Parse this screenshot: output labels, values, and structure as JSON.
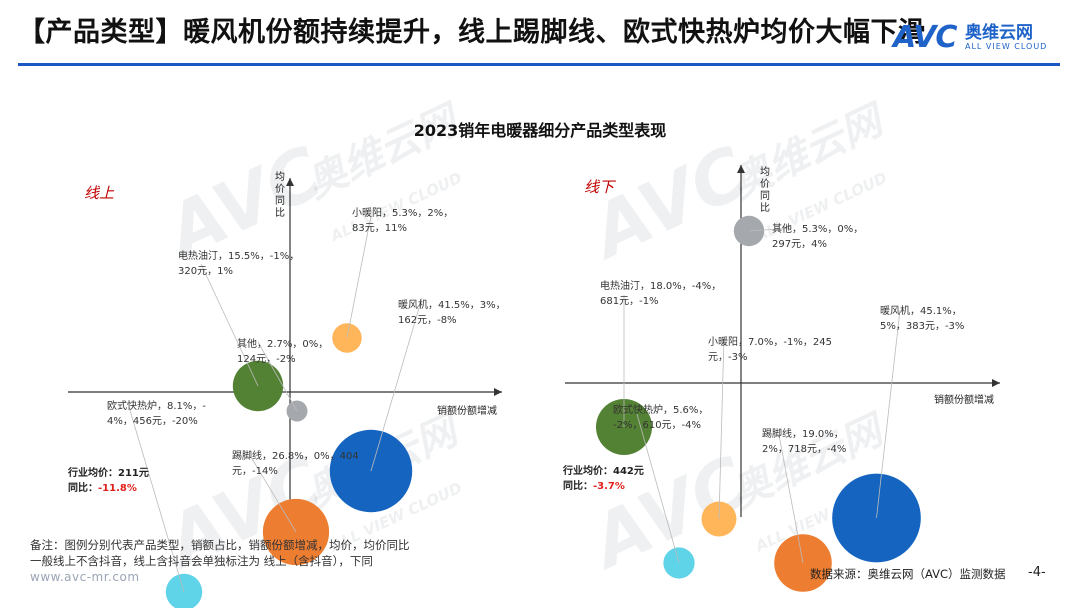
{
  "page_title": "【产品类型】暖风机份额持续提升，线上踢脚线、欧式快热炉均价大幅下滑",
  "logo": {
    "mark": "AVC",
    "cn": "奥维云网",
    "en": "ALL VIEW CLOUD"
  },
  "watermark": {
    "mark": "AVC",
    "cn": "奥维云网",
    "en": "ALL VIEW CLOUD"
  },
  "chart_data": [
    {
      "type": "scatter",
      "title": "2023销年电暖器细分产品类型表现",
      "panel_label": "线上",
      "xlabel": "销额份额增减",
      "ylabel": "均价同比",
      "series": [
        {
          "label_lines": [
            "暖风机，41.5%，3%，",
            "162元，-8%"
          ],
          "share": 41.5,
          "share_change": 3,
          "price": 162,
          "price_yoy": -8,
          "color": "#1565c0"
        },
        {
          "label_lines": [
            "踢脚线，26.8%，0%，404",
            "元，-14%"
          ],
          "share": 26.8,
          "share_change": 0,
          "price": 404,
          "price_yoy": -14,
          "color": "#ed7d31"
        },
        {
          "label_lines": [
            "电热油汀，15.5%，-1%，",
            "320元，1%"
          ],
          "share": 15.5,
          "share_change": -1,
          "price": 320,
          "price_yoy": 1,
          "color": "#548235"
        },
        {
          "label_lines": [
            "欧式快热炉，8.1%，-",
            "4%，456元，-20%"
          ],
          "share": 8.1,
          "share_change": -4,
          "price": 456,
          "price_yoy": -20,
          "color": "#5fd3e8"
        },
        {
          "label_lines": [
            "小暖阳，5.3%，2%，",
            "83元，11%"
          ],
          "share": 5.3,
          "share_change": 2,
          "price": 83,
          "price_yoy": 11,
          "color": "#ffb55a"
        },
        {
          "label_lines": [
            "其他，2.7%，0%，",
            "124元，-2%"
          ],
          "share": 2.7,
          "share_change": 0,
          "price": 124,
          "price_yoy": -2,
          "color": "#a5a9ad"
        }
      ],
      "industry": {
        "avg_label": "行业均价：",
        "avg_value": "211元",
        "yoy_label": "同比：",
        "yoy_value": "-11.8%"
      }
    },
    {
      "type": "scatter",
      "panel_label": "线下",
      "xlabel": "销额份额增减",
      "ylabel": "均价同比",
      "series": [
        {
          "label_lines": [
            "暖风机，45.1%，",
            "5%，383元，-3%"
          ],
          "share": 45.1,
          "share_change": 5,
          "price": 383,
          "price_yoy": -3,
          "color": "#1565c0"
        },
        {
          "label_lines": [
            "踢脚线，19.0%，",
            "2%，718元，-4%"
          ],
          "share": 19.0,
          "share_change": 2,
          "price": 718,
          "price_yoy": -4,
          "color": "#ed7d31"
        },
        {
          "label_lines": [
            "电热油汀，18.0%，-4%，",
            "681元，-1%"
          ],
          "share": 18.0,
          "share_change": -4,
          "price": 681,
          "price_yoy": -1,
          "color": "#548235"
        },
        {
          "label_lines": [
            "小暖阳，7.0%，-1%，245",
            "元，-3%"
          ],
          "share": 7.0,
          "share_change": -1,
          "price": 245,
          "price_yoy": -3,
          "color": "#ffb55a"
        },
        {
          "label_lines": [
            "欧式快热炉，5.6%，",
            "-2%，610元，-4%"
          ],
          "share": 5.6,
          "share_change": -2,
          "price": 610,
          "price_yoy": -4,
          "color": "#5fd3e8"
        },
        {
          "label_lines": [
            "其他，5.3%，0%，",
            "297元，4%"
          ],
          "share": 5.3,
          "share_change": 0,
          "price": 297,
          "price_yoy": 4,
          "color": "#a5a9ad"
        }
      ],
      "industry": {
        "avg_label": "行业均价：",
        "avg_value": "442元",
        "yoy_label": "同比：",
        "yoy_value": "-3.7%"
      }
    }
  ],
  "footnote_lines": [
    "备注：图例分别代表产品类型，销额占比，销额份额增减，均价，均价同比",
    "一般线上不含抖音，线上含抖音会单独标注为 线上（含抖音），下同"
  ],
  "website": "www.avc-mr.com",
  "source": "数据来源：奥维云网（AVC）监测数据",
  "page_number": "-4-"
}
